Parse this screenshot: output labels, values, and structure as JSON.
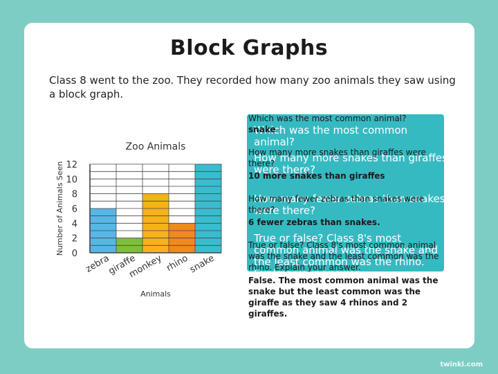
{
  "page": {
    "title": "Block Graphs",
    "intro": "Class 8 went to the zoo. They recorded how many zoo animals they saw using a block graph.",
    "brand": "twinkl.com"
  },
  "questions": [
    {
      "question": "Which was the most common animal?",
      "answer": "snake"
    },
    {
      "question": "How many more snakes than giraffes were there?",
      "answer": "10 more snakes than giraffes"
    },
    {
      "question": "How many fewer zebras than snakes were there?",
      "answer": "6 fewer zebras than snakes."
    },
    {
      "question": "True or false? Class 8's most common animal was the snake and the least common was the rhino. Explain your answer.",
      "answer": "False. The most common animal was the snake but the least common was the giraffe as they saw 4 rhinos and 2 giraffes."
    }
  ],
  "colors": {
    "zebra": "#58b6e6",
    "giraffe": "#7cbf3b",
    "monkey": "#f6b21b",
    "rhino": "#ee8a1e",
    "snake": "#39bccf",
    "panel": "#2bb6bf"
  },
  "chart_data": {
    "type": "bar",
    "title": "Zoo Animals",
    "xlabel": "Animals",
    "ylabel": "Number of Animals Seen",
    "categories": [
      "zebra",
      "giraffe",
      "monkey",
      "rhino",
      "snake"
    ],
    "values": [
      6,
      2,
      8,
      4,
      12
    ],
    "ylim": [
      0,
      12
    ],
    "yticks": [
      0,
      2,
      4,
      6,
      8,
      10,
      12
    ],
    "grid": true
  }
}
